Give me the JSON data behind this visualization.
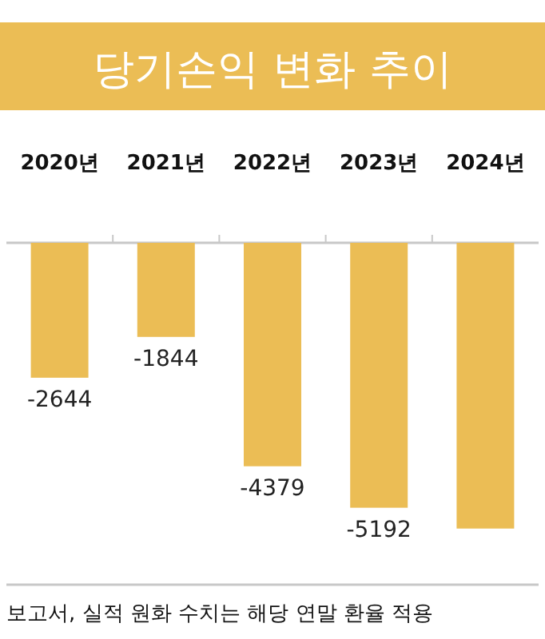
{
  "chart_data": {
    "type": "bar",
    "title": "당기손익 변화 추이",
    "categories": [
      "2020년",
      "2021년",
      "2022년",
      "2023년",
      "2024년"
    ],
    "values": [
      -2644,
      -1844,
      -4379,
      -5192,
      -5600
    ],
    "value_labels": [
      "-2644",
      "-1844",
      "-4379",
      "-5192",
      null
    ],
    "color": "#ebbd55",
    "ylim": [
      -6700,
      0
    ],
    "annotations": [
      "보고서, 실적 원화 수치는 해당 연말 환율 적용"
    ]
  }
}
